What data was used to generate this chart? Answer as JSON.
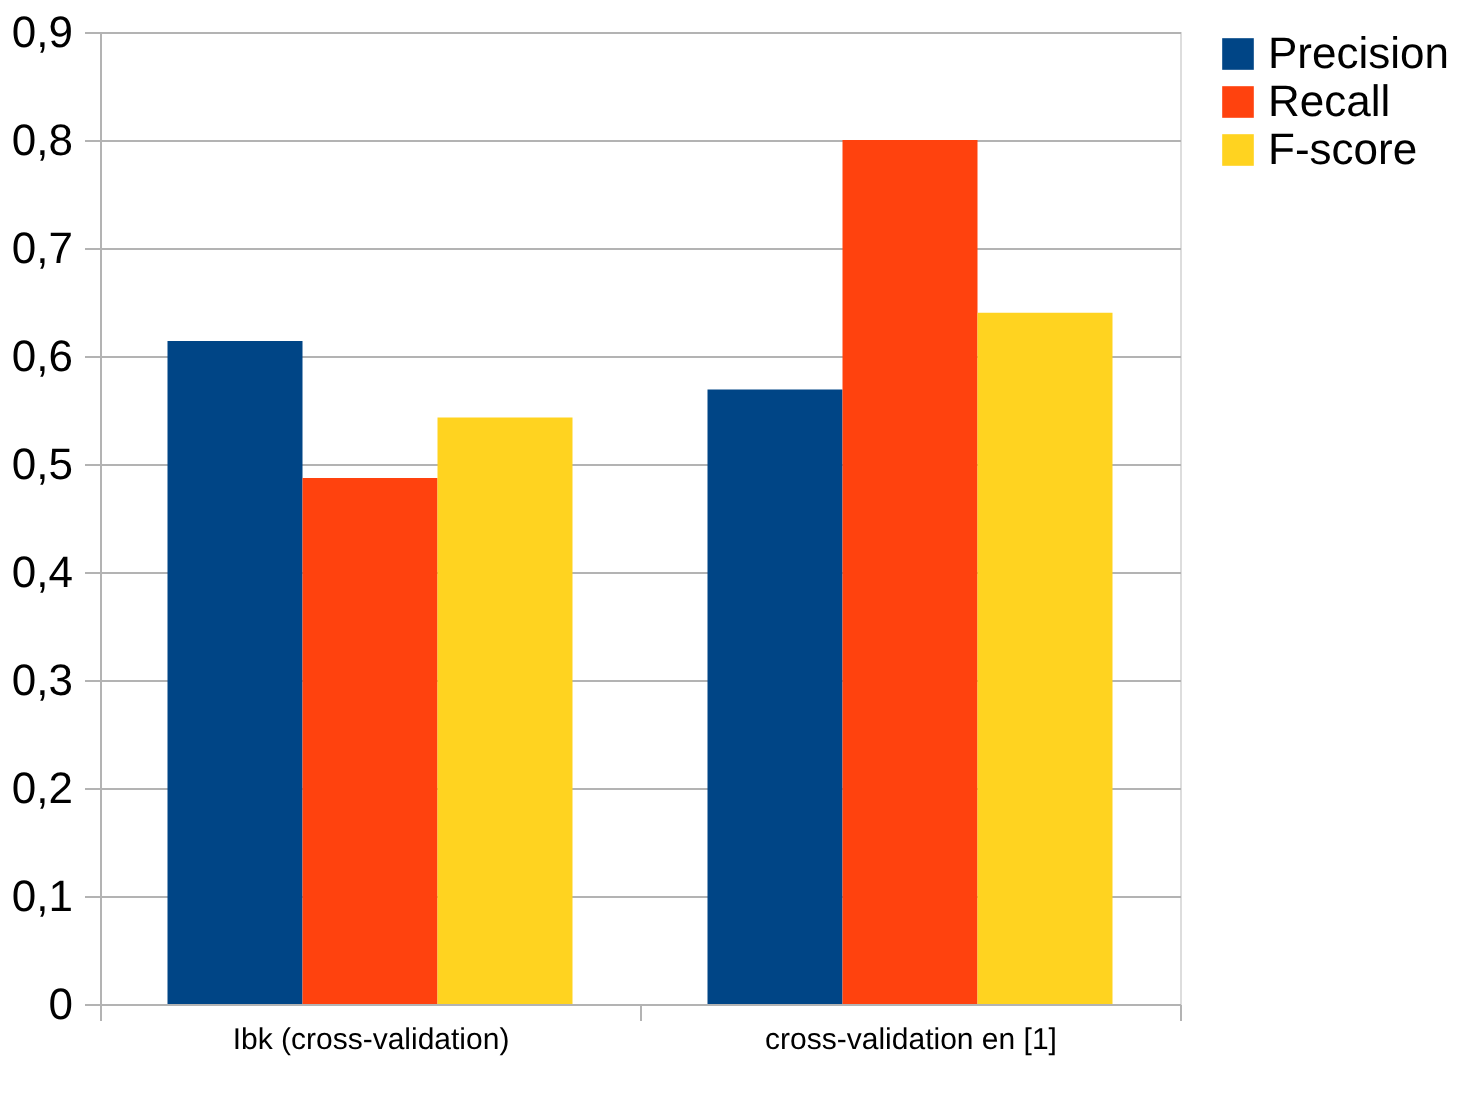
{
  "chart_data": {
    "type": "bar",
    "categories": [
      "Ibk (cross-validation)",
      "cross-validation en [1]"
    ],
    "series": [
      {
        "name": "Precision",
        "color": "#004586",
        "values": [
          0.614,
          0.569
        ]
      },
      {
        "name": "Recall",
        "color": "#ff420e",
        "values": [
          0.487,
          0.8
        ]
      },
      {
        "name": "F-score",
        "color": "#ffd320",
        "values": [
          0.543,
          0.64
        ]
      }
    ],
    "ylim": [
      0,
      0.9
    ],
    "yticks": [
      0,
      {
        "value": 0.1,
        "label": "0,1"
      },
      {
        "value": 0.2,
        "label": "0,2"
      },
      {
        "value": 0.3,
        "label": "0,3"
      },
      {
        "value": 0.4,
        "label": "0,4"
      },
      {
        "value": 0.5,
        "label": "0,5"
      },
      {
        "value": 0.6,
        "label": "0,6"
      },
      {
        "value": 0.7,
        "label": "0,7"
      },
      {
        "value": 0.8,
        "label": "0,8"
      },
      {
        "value": 0.9,
        "label": "0,9"
      }
    ],
    "grid": "y",
    "legend": "right"
  }
}
